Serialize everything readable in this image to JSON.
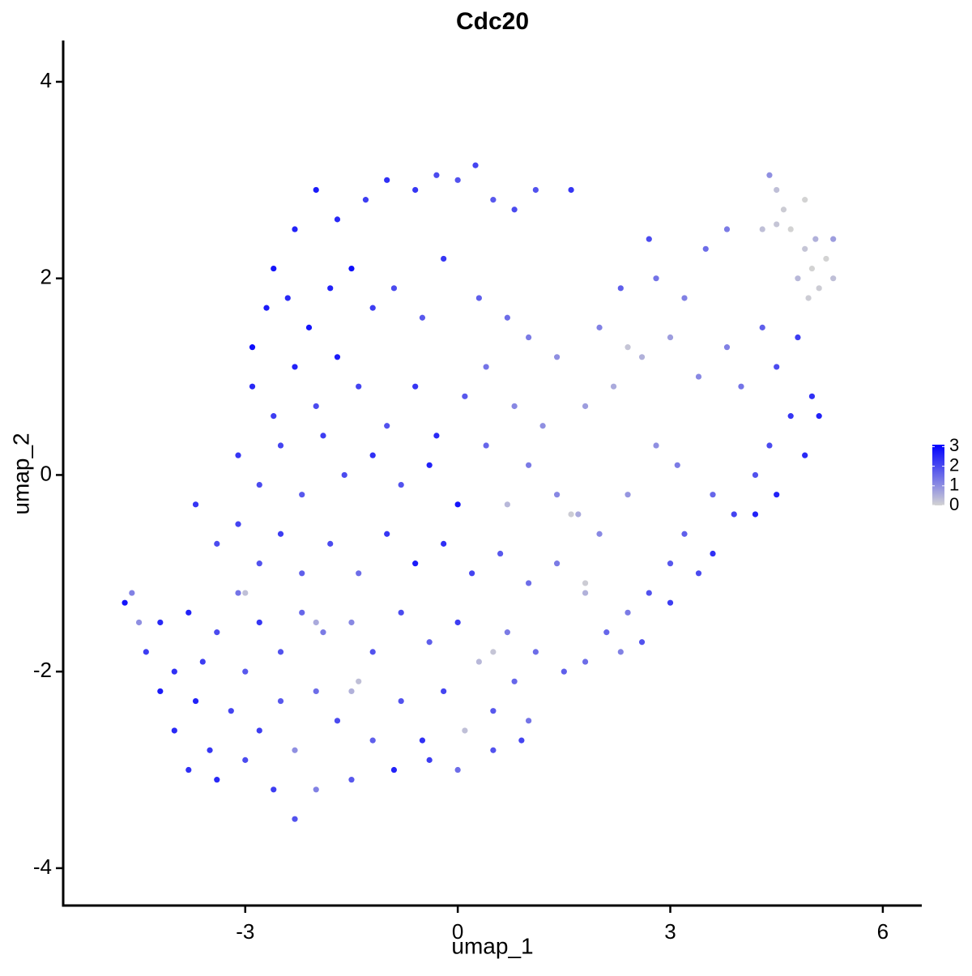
{
  "chart_data": {
    "type": "scatter",
    "title": "Cdc20",
    "x_label": "umap_1",
    "y_label": "umap_2",
    "xlim": [
      -5.57,
      6.55
    ],
    "ylim": [
      -4.38,
      4.42
    ],
    "xticks": [
      -3,
      0,
      3,
      6
    ],
    "yticks": [
      -4,
      -2,
      0,
      2,
      4
    ],
    "x": [
      -2.6,
      -2.3,
      -2.0,
      -1.7,
      -1.3,
      -1.0,
      -0.6,
      -0.3,
      0.0,
      0.25,
      0.5,
      0.8,
      1.1,
      1.6,
      -2.9,
      -2.7,
      -2.4,
      -2.1,
      -1.8,
      -1.5,
      -1.2,
      -0.9,
      -0.5,
      -0.2,
      0.3,
      0.7,
      1.0,
      1.4,
      -2.9,
      -2.6,
      -2.3,
      -2.0,
      -1.7,
      -1.4,
      -1.0,
      -0.6,
      -0.3,
      0.1,
      0.4,
      0.8,
      1.2,
      -3.1,
      -2.8,
      -2.5,
      -2.2,
      -1.9,
      -1.6,
      -1.2,
      -0.8,
      -0.4,
      0.0,
      0.4,
      0.7,
      1.0,
      1.4,
      1.7,
      -3.7,
      -3.4,
      -3.1,
      -2.8,
      -2.5,
      -2.2,
      -1.8,
      -1.4,
      -1.0,
      -0.6,
      -0.2,
      0.2,
      0.6,
      1.0,
      1.4,
      1.8,
      -4.7,
      -4.6,
      -4.5,
      -4.4,
      -4.2,
      -4.0,
      -3.8,
      -3.6,
      -3.4,
      -3.1,
      -2.8,
      -2.5,
      -2.2,
      -1.9,
      -1.5,
      -1.2,
      -0.8,
      -0.4,
      0.0,
      0.3,
      0.7,
      1.1,
      1.5,
      -4.2,
      -4.0,
      -3.7,
      -3.5,
      -3.2,
      -3.0,
      -2.8,
      -2.5,
      -2.3,
      -2.0,
      -1.7,
      -1.5,
      -1.2,
      -0.8,
      -0.5,
      -0.2,
      0.1,
      0.5,
      0.8,
      1.0,
      -3.8,
      -3.4,
      -3.0,
      -2.6,
      -2.3,
      -2.0,
      -1.5,
      -0.9,
      -0.4,
      0.0,
      0.5,
      0.9,
      1.8,
      2.2,
      2.6,
      2.0,
      2.3,
      2.8,
      3.2,
      3.5,
      3.8,
      2.7,
      3.0,
      3.4,
      3.8,
      4.0,
      4.3,
      4.5,
      4.8,
      5.0,
      5.1,
      4.7,
      4.4,
      4.9,
      4.2,
      4.5,
      3.9,
      3.6,
      3.2,
      3.0,
      2.7,
      2.4,
      2.1,
      2.0,
      2.4,
      2.8,
      3.1,
      3.4,
      3.0,
      2.6,
      2.3,
      1.8,
      3.6,
      4.2,
      4.4,
      4.5,
      4.6,
      4.7,
      4.9,
      5.0,
      5.1,
      5.2,
      4.8,
      4.5,
      5.3,
      4.95,
      5.05,
      4.3,
      5.3,
      4.9,
      1.6,
      -1.4,
      2.4,
      -3.0,
      0.5,
      1.8,
      -2.0
    ],
    "y": [
      2.1,
      2.5,
      2.9,
      2.6,
      2.8,
      3.0,
      2.9,
      3.05,
      3.0,
      3.15,
      2.8,
      2.7,
      2.9,
      2.9,
      1.3,
      1.7,
      1.8,
      1.5,
      1.9,
      2.1,
      1.7,
      1.9,
      1.6,
      2.2,
      1.8,
      1.6,
      1.4,
      1.2,
      0.9,
      0.6,
      1.1,
      0.7,
      1.2,
      0.9,
      0.5,
      0.9,
      0.4,
      0.8,
      1.1,
      0.7,
      0.5,
      0.2,
      -0.1,
      0.3,
      -0.2,
      0.4,
      0.0,
      0.2,
      -0.1,
      0.1,
      -0.3,
      0.3,
      -0.3,
      0.1,
      -0.2,
      -0.4,
      -0.3,
      -0.7,
      -0.5,
      -0.9,
      -0.6,
      -1.0,
      -0.7,
      -1.0,
      -0.6,
      -0.9,
      -0.7,
      -1.0,
      -0.8,
      -1.1,
      -0.9,
      -1.2,
      -1.3,
      -1.2,
      -1.5,
      -1.8,
      -1.5,
      -2.0,
      -1.4,
      -1.9,
      -1.6,
      -1.2,
      -1.5,
      -1.8,
      -1.4,
      -1.6,
      -1.5,
      -1.8,
      -1.4,
      -1.7,
      -1.5,
      -1.9,
      -1.6,
      -1.8,
      -2.0,
      -2.2,
      -2.6,
      -2.3,
      -2.8,
      -2.4,
      -2.0,
      -2.6,
      -2.3,
      -2.8,
      -2.2,
      -2.5,
      -2.2,
      -2.7,
      -2.3,
      -2.7,
      -2.2,
      -2.6,
      -2.4,
      -2.1,
      -2.5,
      -3.0,
      -3.1,
      -2.9,
      -3.2,
      -3.5,
      -3.2,
      -3.1,
      -3.0,
      -2.9,
      -3.0,
      -2.8,
      -2.7,
      0.7,
      0.9,
      1.2,
      1.5,
      1.9,
      2.0,
      1.8,
      2.3,
      2.5,
      2.4,
      1.4,
      1.0,
      1.3,
      0.9,
      1.5,
      1.1,
      1.4,
      0.8,
      0.6,
      0.6,
      0.3,
      0.2,
      0.0,
      -0.2,
      -0.4,
      -0.2,
      -0.6,
      -0.9,
      -1.2,
      -1.4,
      -1.6,
      -0.6,
      -0.2,
      0.3,
      0.1,
      -1.0,
      -1.3,
      -1.7,
      -1.8,
      -1.9,
      -0.8,
      -0.4,
      3.05,
      2.9,
      2.7,
      2.5,
      2.3,
      2.1,
      1.9,
      2.2,
      2.0,
      2.55,
      2.0,
      1.8,
      2.4,
      2.5,
      2.4,
      2.8,
      -0.4,
      -2.1,
      1.3,
      -1.2,
      -1.8,
      -1.1,
      -1.5
    ],
    "values": [
      2.8,
      2.6,
      2.7,
      2.5,
      2.2,
      2.4,
      2.3,
      2.0,
      1.9,
      2.1,
      1.8,
      2.0,
      1.9,
      2.3,
      2.9,
      2.7,
      2.5,
      2.8,
      2.6,
      2.9,
      2.2,
      2.0,
      1.8,
      2.3,
      1.7,
      1.5,
      1.3,
      1.0,
      2.5,
      2.2,
      2.6,
      2.0,
      2.7,
      2.1,
      1.9,
      2.3,
      2.5,
      1.8,
      1.4,
      1.1,
      1.0,
      2.3,
      2.0,
      2.1,
      1.8,
      2.2,
      2.0,
      2.4,
      1.9,
      2.6,
      2.8,
      1.6,
      0.4,
      1.3,
      1.1,
      0.6,
      2.3,
      2.0,
      2.1,
      1.9,
      2.2,
      1.7,
      2.0,
      1.5,
      2.3,
      2.7,
      2.4,
      2.1,
      1.8,
      1.5,
      1.3,
      0.5,
      2.8,
      1.2,
      1.0,
      2.2,
      2.5,
      2.4,
      2.6,
      2.2,
      2.0,
      1.4,
      2.3,
      1.9,
      1.6,
      1.3,
      1.1,
      1.9,
      2.0,
      1.7,
      2.2,
      0.4,
      1.3,
      1.5,
      1.7,
      2.7,
      2.5,
      2.6,
      2.3,
      2.1,
      1.8,
      2.2,
      1.8,
      1.0,
      1.5,
      2.0,
      0.5,
      1.7,
      1.9,
      2.4,
      2.1,
      0.3,
      1.8,
      1.6,
      1.4,
      2.4,
      2.5,
      2.0,
      2.2,
      1.9,
      1.2,
      1.8,
      2.6,
      2.2,
      1.5,
      1.9,
      2.1,
      0.8,
      0.6,
      0.5,
      1.2,
      1.7,
      1.4,
      1.2,
      1.5,
      1.3,
      2.0,
      0.8,
      1.1,
      1.2,
      1.4,
      1.7,
      2.0,
      2.2,
      2.4,
      2.6,
      2.3,
      2.0,
      2.5,
      1.9,
      2.6,
      2.1,
      1.6,
      1.7,
      1.8,
      1.9,
      1.3,
      1.6,
      1.1,
      0.9,
      1.0,
      1.3,
      2.0,
      2.2,
      1.9,
      1.2,
      1.5,
      2.4,
      2.6,
      1.0,
      0.3,
      0.1,
      0.0,
      0.2,
      0.0,
      0.1,
      0.0,
      0.4,
      0.2,
      0.3,
      0.1,
      0.5,
      0.3,
      0.8,
      0.0,
      0.1,
      0.3,
      0.2,
      0.3,
      0.2,
      0.1,
      0.6
    ],
    "color_low": "#d3d3d3",
    "color_high": "#0000ff",
    "color_lim": [
      0,
      3.1
    ],
    "color_ticks": [
      0,
      1,
      2,
      3
    ]
  }
}
